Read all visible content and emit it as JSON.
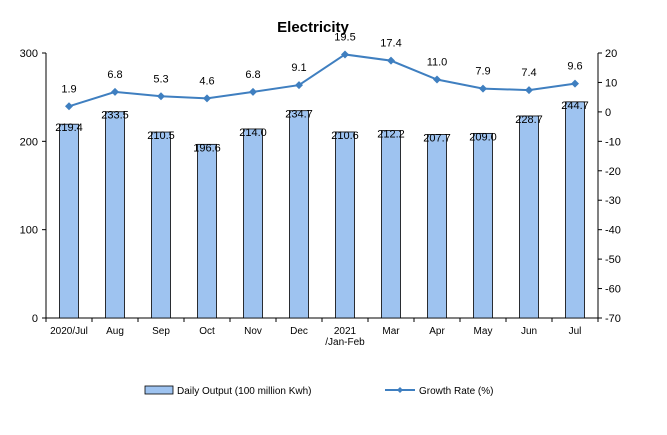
{
  "chart_data": {
    "type": "bar",
    "title": "Electricity",
    "categories": [
      "2020/Jul",
      "Aug",
      "Sep",
      "Oct",
      "Nov",
      "Dec",
      "2021\n/Jan-Feb",
      "Mar",
      "Apr",
      "May",
      "Jun",
      "Jul"
    ],
    "series": [
      {
        "name": "Daily Output (100 million Kwh)",
        "type": "bar",
        "axis": "left",
        "color": "#9ec3f0",
        "values": [
          219.4,
          233.5,
          210.5,
          196.6,
          214.0,
          234.7,
          210.6,
          212.2,
          207.7,
          209.0,
          228.7,
          244.7
        ],
        "labels": [
          "219.4",
          "233.5",
          "210.5",
          "196.6",
          "214.0",
          "234.7",
          "210.6",
          "212.2",
          "207.7",
          "209.0",
          "228.7",
          "244.7"
        ]
      },
      {
        "name": "Growth Rate (%)",
        "type": "line",
        "axis": "right",
        "color": "#3f7fc0",
        "values": [
          1.9,
          6.8,
          5.3,
          4.6,
          6.8,
          9.1,
          19.5,
          17.4,
          11.0,
          7.9,
          7.4,
          9.6
        ],
        "labels": [
          "1.9",
          "6.8",
          "5.3",
          "4.6",
          "6.8",
          "9.1",
          "19.5",
          "17.4",
          "11.0",
          "7.9",
          "7.4",
          "9.6"
        ]
      }
    ],
    "y_left": {
      "min": 0,
      "max": 300,
      "ticks": [
        "0",
        "100",
        "200",
        "300"
      ]
    },
    "y_right": {
      "min": -70,
      "max": 20,
      "ticks": [
        "20",
        "10",
        "0",
        "-10",
        "-20",
        "-30",
        "-40",
        "-50",
        "-60",
        "-70"
      ]
    },
    "grid": false,
    "legend_position": "bottom"
  }
}
